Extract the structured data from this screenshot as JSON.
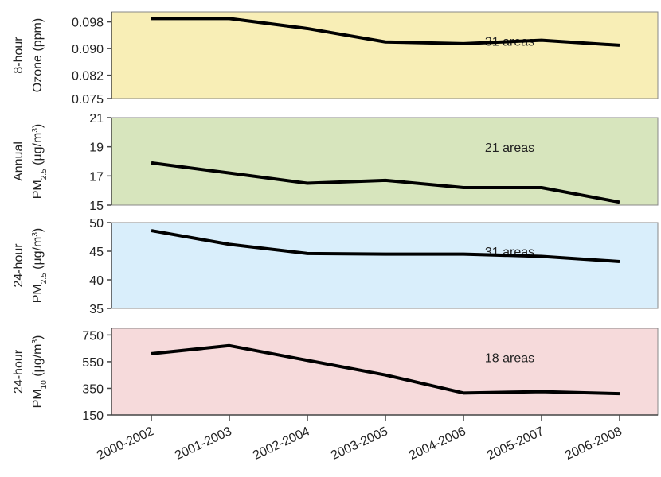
{
  "chart_data": [
    {
      "type": "line",
      "ylabel": [
        [
          {
            "text": "8-hour"
          }
        ],
        [
          {
            "text": "Ozone (ppm)"
          }
        ]
      ],
      "annotation": "31 areas",
      "background": "#f8eeb6",
      "color": "#000000",
      "values": [
        0.099,
        0.099,
        0.096,
        0.092,
        0.0915,
        0.0925,
        0.091
      ],
      "ylim": [
        0.075,
        0.101
      ],
      "yticks": [
        {
          "value": 0.075,
          "label": "0.075"
        },
        {
          "value": 0.082,
          "label": "0.082"
        },
        {
          "value": 0.09,
          "label": "0.090"
        },
        {
          "value": 0.098,
          "label": "0.098"
        }
      ]
    },
    {
      "type": "line",
      "ylabel": [
        [
          {
            "text": "Annual"
          }
        ],
        [
          {
            "text": "PM"
          },
          {
            "text": "2.5",
            "shift": "sub"
          },
          {
            "text": " (µg/m"
          },
          {
            "text": "3",
            "shift": "super"
          },
          {
            "text": ")"
          }
        ]
      ],
      "annotation": "21 areas",
      "background": "#d7e5bd",
      "color": "#000000",
      "values": [
        17.9,
        17.2,
        16.5,
        16.7,
        16.2,
        16.2,
        15.2
      ],
      "ylim": [
        15,
        21
      ],
      "yticks": [
        15,
        17,
        19,
        21
      ]
    },
    {
      "type": "line",
      "ylabel": [
        [
          {
            "text": "24-hour"
          }
        ],
        [
          {
            "text": "PM"
          },
          {
            "text": "2.5",
            "shift": "sub"
          },
          {
            "text": " (µg/m"
          },
          {
            "text": "3",
            "shift": "super"
          },
          {
            "text": ")"
          }
        ]
      ],
      "annotation": "31 areas",
      "background": "#d9eefb",
      "color": "#000000",
      "values": [
        48.6,
        46.2,
        44.6,
        44.5,
        44.5,
        44.1,
        43.2
      ],
      "ylim": [
        35,
        50
      ],
      "yticks": [
        35,
        40,
        45,
        50
      ]
    },
    {
      "type": "line",
      "ylabel": [
        [
          {
            "text": "24-hour"
          }
        ],
        [
          {
            "text": "PM"
          },
          {
            "text": "10",
            "shift": "sub"
          },
          {
            "text": " (µg/m"
          },
          {
            "text": "3",
            "shift": "super"
          },
          {
            "text": ")"
          }
        ]
      ],
      "annotation": "18 areas",
      "background": "#f6dadb",
      "color": "#000000",
      "categories": [
        "2000-2002",
        "2001-2003",
        "2002-2004",
        "2003-2005",
        "2004-2006",
        "2005-2007",
        "2006-2008"
      ],
      "values": [
        610,
        670,
        560,
        450,
        315,
        325,
        310
      ],
      "ylim": [
        150,
        800
      ],
      "yticks": [
        150,
        350,
        550,
        750
      ]
    }
  ]
}
